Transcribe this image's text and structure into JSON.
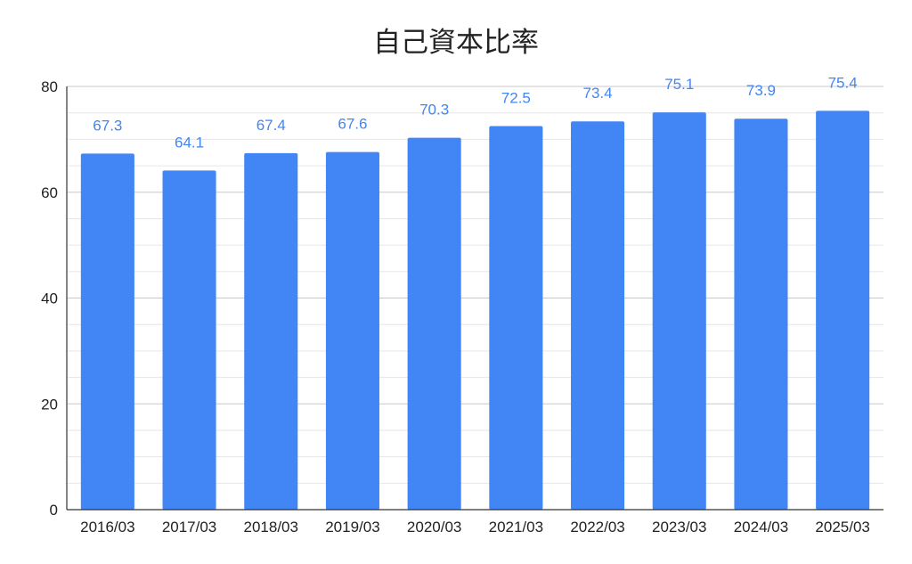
{
  "chart_data": {
    "type": "bar",
    "title": "自己資本比率",
    "xlabel": "",
    "ylabel": "",
    "categories": [
      "2016/03",
      "2017/03",
      "2018/03",
      "2019/03",
      "2020/03",
      "2021/03",
      "2022/03",
      "2023/03",
      "2024/03",
      "2025/03"
    ],
    "values": [
      67.3,
      64.1,
      67.4,
      67.6,
      70.3,
      72.5,
      73.4,
      75.1,
      73.9,
      75.4
    ],
    "data_labels": [
      "67.3",
      "64.1",
      "67.4",
      "67.6",
      "70.3",
      "72.5",
      "73.4",
      "75.1",
      "73.9",
      "75.4"
    ],
    "ylim": [
      0,
      80
    ],
    "y_ticks": [
      "0",
      "20",
      "40",
      "60",
      "80"
    ],
    "grid": true,
    "legend": "none",
    "colors": {
      "bar": "#4285f4",
      "data_label": "#4285f4",
      "grid_major": "#c8c8c8",
      "grid_minor": "#e6e6e6",
      "axis": "#333333"
    }
  }
}
